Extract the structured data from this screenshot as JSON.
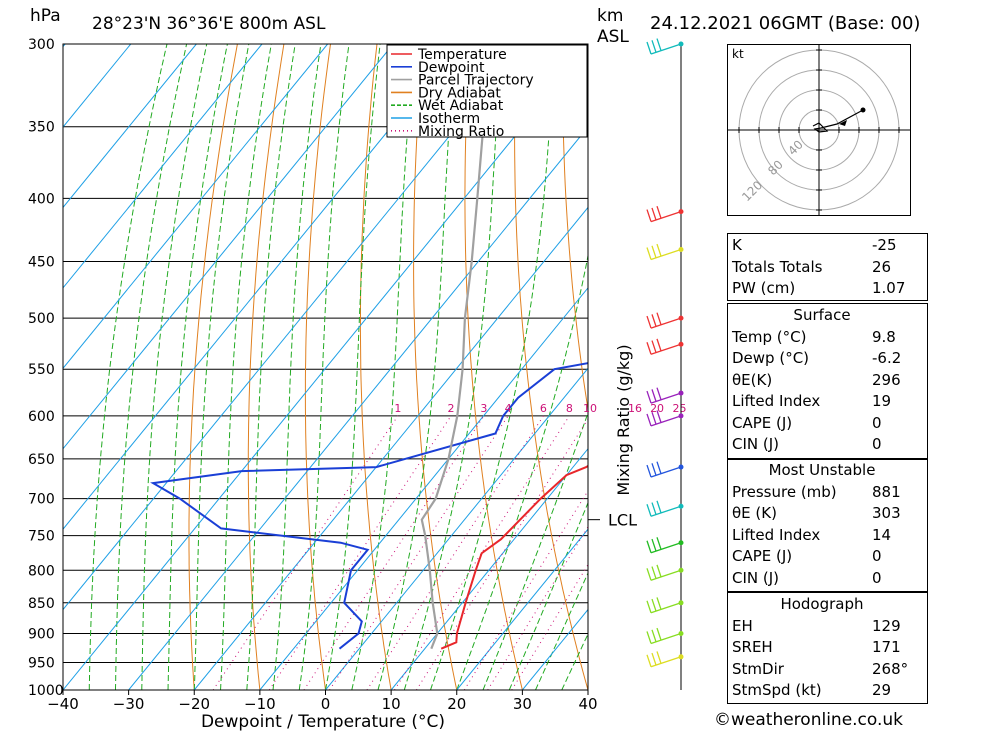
{
  "header": {
    "pressure_unit": "hPa",
    "location": "28°23'N 36°36'E 800m ASL",
    "km_label_1": "km",
    "km_label_2": "ASL",
    "datetime": "24.12.2021 06GMT (Base: 00)"
  },
  "chart_data": {
    "type": "line",
    "xlabel": "Dewpoint / Temperature (°C)",
    "ylabel": "hPa",
    "x_ticks": [
      -40,
      -30,
      -20,
      -10,
      0,
      10,
      20,
      30,
      40
    ],
    "xlim": [
      -40,
      40
    ],
    "y_scale": "log",
    "ylim": [
      1000,
      300
    ],
    "pressure_levels": [
      300,
      350,
      400,
      450,
      500,
      550,
      600,
      650,
      700,
      750,
      800,
      850,
      900,
      950,
      1000
    ],
    "mixing_ratio_axis_label": "Mixing Ratio (g/kg)",
    "mixing_ratio_labels": [
      "1",
      "2",
      "3",
      "4",
      "6",
      "8",
      "10",
      "16",
      "20",
      "25"
    ],
    "lcl_label": "LCL",
    "lcl_pressure": 728,
    "legend": {
      "placement": "top-right",
      "entries": [
        {
          "label": "Temperature",
          "color": "#e8272b",
          "style": "solid"
        },
        {
          "label": "Dewpoint",
          "color": "#1a3fd6",
          "style": "solid"
        },
        {
          "label": "Parcel Trajectory",
          "color": "#a0a0a0",
          "style": "solid"
        },
        {
          "label": "Dry Adiabat",
          "color": "#e08020",
          "style": "solid"
        },
        {
          "label": "Wet Adiabat",
          "color": "#22aa22",
          "style": "dashed"
        },
        {
          "label": "Isotherm",
          "color": "#1ea0e6",
          "style": "solid"
        },
        {
          "label": "Mixing Ratio",
          "color": "#cc1177",
          "style": "dotted"
        }
      ]
    },
    "series": [
      {
        "name": "Temperature",
        "color": "#e8272b",
        "points": [
          [
            926,
            12.5
          ],
          [
            915,
            14
          ],
          [
            900,
            13
          ],
          [
            850,
            10.5
          ],
          [
            800,
            8
          ],
          [
            775,
            6.8
          ],
          [
            755,
            8
          ],
          [
            700,
            9
          ],
          [
            670,
            10
          ],
          [
            660,
            12
          ],
          [
            650,
            13
          ],
          [
            600,
            14.5
          ],
          [
            570,
            15.5
          ],
          [
            550,
            16
          ],
          [
            530,
            20
          ],
          [
            520,
            22
          ],
          [
            500,
            21.5
          ],
          [
            450,
            20.5
          ],
          [
            400,
            16
          ],
          [
            350,
            10
          ],
          [
            320,
            6.5
          ],
          [
            310,
            7
          ],
          [
            300,
            8
          ]
        ]
      },
      {
        "name": "Dewpoint",
        "color": "#1a3fd6",
        "points": [
          [
            926,
            -3
          ],
          [
            900,
            -2
          ],
          [
            880,
            -3
          ],
          [
            850,
            -8
          ],
          [
            800,
            -11
          ],
          [
            770,
            -11
          ],
          [
            760,
            -16
          ],
          [
            740,
            -36
          ],
          [
            700,
            -46
          ],
          [
            680,
            -52
          ],
          [
            665,
            -40
          ],
          [
            660,
            -20
          ],
          [
            620,
            -6
          ],
          [
            600,
            -7
          ],
          [
            580,
            -7
          ],
          [
            550,
            -5
          ],
          [
            540,
            2
          ],
          [
            520,
            10
          ],
          [
            500,
            7
          ],
          [
            450,
            5
          ],
          [
            400,
            2
          ],
          [
            350,
            -3
          ],
          [
            320,
            -7
          ],
          [
            310,
            -5
          ],
          [
            300,
            -3
          ]
        ]
      },
      {
        "name": "Parcel Trajectory",
        "color": "#a0a0a0",
        "points": [
          [
            926,
            11
          ],
          [
            900,
            10
          ],
          [
            850,
            5.5
          ],
          [
            800,
            1
          ],
          [
            750,
            -4
          ],
          [
            728,
            -6.5
          ],
          [
            700,
            -7
          ],
          [
            650,
            -10
          ],
          [
            600,
            -14
          ],
          [
            550,
            -19
          ],
          [
            500,
            -25
          ],
          [
            450,
            -31
          ],
          [
            400,
            -38
          ],
          [
            350,
            -46
          ],
          [
            300,
            -55
          ]
        ]
      }
    ]
  },
  "wind_barbs": [
    {
      "pressure": 300,
      "color": "#11bbbb"
    },
    {
      "pressure": 410,
      "color": "#ee3333"
    },
    {
      "pressure": 440,
      "color": "#dddd22"
    },
    {
      "pressure": 500,
      "color": "#ee3333"
    },
    {
      "pressure": 525,
      "color": "#ee3333"
    },
    {
      "pressure": 575,
      "color": "#9922bb"
    },
    {
      "pressure": 600,
      "color": "#9922bb"
    },
    {
      "pressure": 660,
      "color": "#2255dd"
    },
    {
      "pressure": 710,
      "color": "#11bbbb"
    },
    {
      "pressure": 760,
      "color": "#22bb22"
    },
    {
      "pressure": 800,
      "color": "#88dd22"
    },
    {
      "pressure": 850,
      "color": "#88dd22"
    },
    {
      "pressure": 900,
      "color": "#88dd22"
    },
    {
      "pressure": 940,
      "color": "#dddd22"
    }
  ],
  "hodograph": {
    "unit_label": "kt",
    "ring_labels": [
      "40",
      "80",
      "120"
    ]
  },
  "indices": {
    "top": [
      {
        "label": "K",
        "value": "-25"
      },
      {
        "label": "Totals Totals",
        "value": "26"
      },
      {
        "label": "PW (cm)",
        "value": "1.07"
      }
    ],
    "surface_title": "Surface",
    "surface": [
      {
        "label": "Temp (°C)",
        "value": "9.8"
      },
      {
        "label": "Dewp (°C)",
        "value": "-6.2"
      },
      {
        "label": "θE(K)",
        "value": "296"
      },
      {
        "label": "Lifted Index",
        "value": "19"
      },
      {
        "label": "CAPE (J)",
        "value": "0"
      },
      {
        "label": "CIN (J)",
        "value": "0"
      }
    ],
    "mu_title": "Most Unstable",
    "mu": [
      {
        "label": "Pressure (mb)",
        "value": "881"
      },
      {
        "label": "θE (K)",
        "value": "303"
      },
      {
        "label": "Lifted Index",
        "value": "14"
      },
      {
        "label": "CAPE (J)",
        "value": "0"
      },
      {
        "label": "CIN (J)",
        "value": "0"
      }
    ],
    "hodo_title": "Hodograph",
    "hodo": [
      {
        "label": "EH",
        "value": "129"
      },
      {
        "label": "SREH",
        "value": "171"
      },
      {
        "label": "StmDir",
        "value": "268°"
      },
      {
        "label": "StmSpd (kt)",
        "value": "29"
      }
    ]
  },
  "footer": {
    "copyright": "©weatheronline.co.uk"
  }
}
